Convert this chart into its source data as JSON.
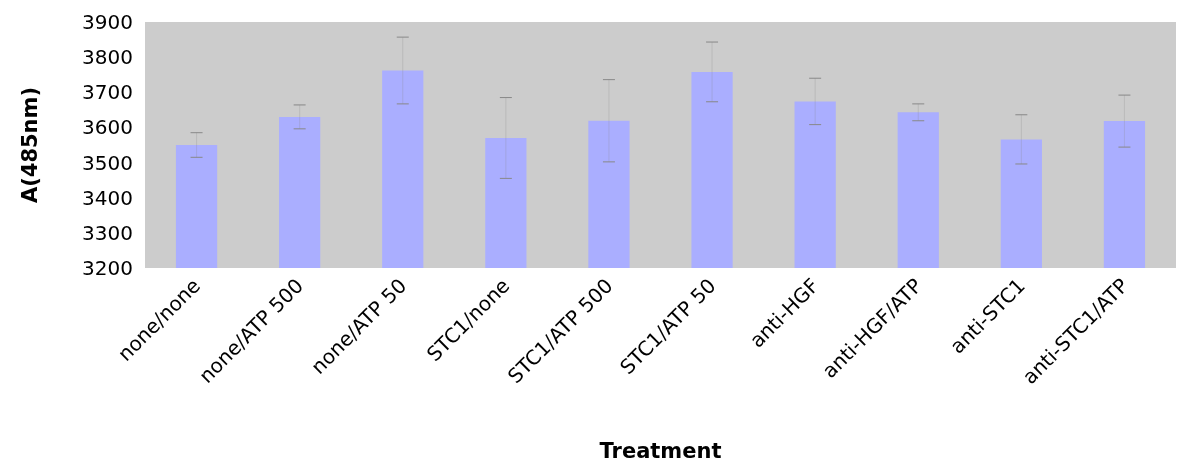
{
  "chart_data": {
    "type": "bar",
    "xlabel": "Treatment",
    "ylabel": "A(485nm)",
    "categories": [
      "none/none",
      "none/ATP 500",
      "none/ATP 50",
      "STC1/none",
      "STC1/ATP 500",
      "STC1/ATP 50",
      "anti-HGF",
      "anti-HGF/ATP",
      "anti-STC1",
      "anti-STC1/ATP"
    ],
    "series": [
      {
        "color": "#aaaeff",
        "values": [
          3550,
          3630,
          3762,
          3570,
          3619,
          3758,
          3674,
          3643,
          3566,
          3618
        ],
        "errors": [
          35,
          34,
          95,
          115,
          117,
          85,
          66,
          24,
          70,
          74
        ]
      }
    ],
    "ylim": [
      3200,
      3900
    ],
    "yticks": [
      3200,
      3300,
      3400,
      3500,
      3600,
      3700,
      3800,
      3900
    ],
    "grid": false
  }
}
